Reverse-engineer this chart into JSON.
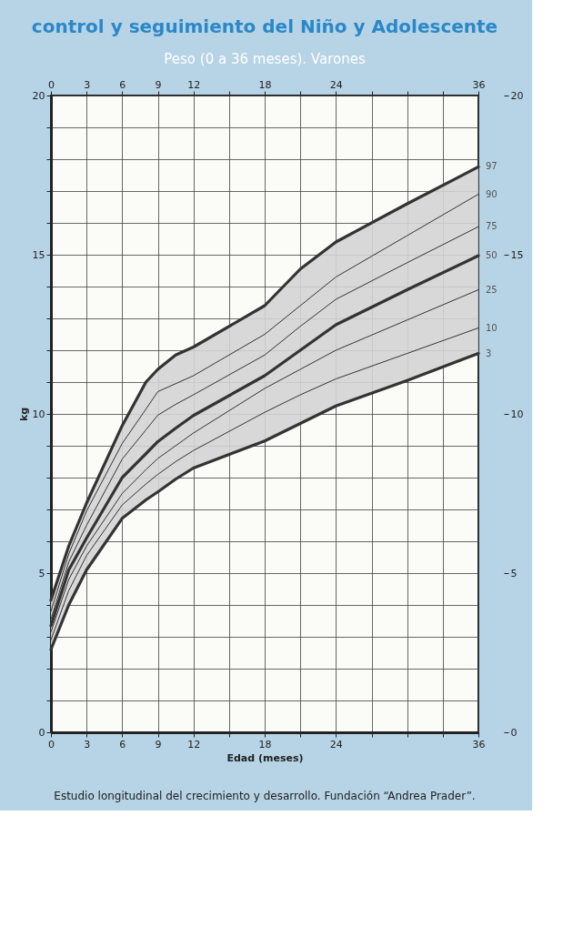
{
  "chart_data": {
    "type": "line",
    "title": "control y seguimiento del Niño y Adolescente",
    "subtitle": "Peso (0 a 36 meses). Varones",
    "xlabel": "Edad (meses)",
    "ylabel": "kg",
    "annotations": [
      "Estudio longitudinal del crecimiento y desarrollo. Fundación “Andrea Prader”."
    ],
    "x": [
      0,
      1.5,
      3,
      6,
      8,
      9,
      10.5,
      12,
      18,
      21,
      24,
      30,
      36
    ],
    "series": [
      {
        "name": "3",
        "color": "#333333",
        "values": [
          2.6,
          4.0,
          5.1,
          6.72,
          7.3,
          7.55,
          7.95,
          8.3,
          9.15,
          9.7,
          10.25,
          11.05,
          11.9
        ]
      },
      {
        "name": "10",
        "color": "#333333",
        "values": [
          2.9,
          4.45,
          5.55,
          7.14,
          7.8,
          8.1,
          8.5,
          8.85,
          10.05,
          10.6,
          11.1,
          11.9,
          12.7
        ]
      },
      {
        "name": "25",
        "color": "#333333",
        "values": [
          3.15,
          4.8,
          5.85,
          7.5,
          8.25,
          8.6,
          9.0,
          9.4,
          10.8,
          11.4,
          12.0,
          12.95,
          13.9
        ]
      },
      {
        "name": "50",
        "color": "#333333",
        "values": [
          3.35,
          5.1,
          6.1,
          8.0,
          8.75,
          9.13,
          9.55,
          9.95,
          11.2,
          12.0,
          12.8,
          13.9,
          14.97
        ],
        "lower": [
          2.6,
          4.0,
          5.1,
          6.72,
          7.3,
          7.55,
          7.95,
          8.3,
          9.15,
          9.7,
          10.25,
          11.05,
          11.9
        ],
        "upper": [
          4.15,
          5.85,
          7.2,
          9.63,
          11.0,
          11.4,
          11.85,
          12.1,
          13.4,
          14.55,
          15.4,
          16.6,
          17.76
        ]
      },
      {
        "name": "75",
        "color": "#333333",
        "values": [
          3.55,
          5.35,
          6.5,
          8.58,
          9.5,
          9.96,
          10.3,
          10.6,
          11.85,
          12.75,
          13.6,
          14.75,
          15.88
        ]
      },
      {
        "name": "90",
        "color": "#333333",
        "values": [
          3.8,
          5.6,
          6.95,
          9.07,
          10.15,
          10.7,
          10.95,
          11.2,
          12.5,
          13.4,
          14.3,
          15.6,
          16.9
        ]
      },
      {
        "name": "97",
        "color": "#333333",
        "values": [
          4.15,
          5.85,
          7.2,
          9.63,
          11.0,
          11.4,
          11.85,
          12.1,
          13.4,
          14.55,
          15.4,
          16.6,
          17.76
        ]
      }
    ],
    "xlim": [
      0,
      36
    ],
    "xticks": [
      0,
      3,
      6,
      9,
      12,
      {
        "value": 15,
        "label": null
      },
      18,
      {
        "value": 21,
        "label": null
      },
      24,
      {
        "value": 27,
        "label": null
      },
      {
        "value": 30,
        "label": null
      },
      {
        "value": 33,
        "label": null
      },
      36
    ],
    "x2lim": [
      0,
      36
    ],
    "x2ticks": [
      0,
      3,
      6,
      9,
      12,
      {
        "value": 15,
        "label": null
      },
      18,
      {
        "value": 21,
        "label": null
      },
      24,
      {
        "value": 27,
        "label": null
      },
      {
        "value": 30,
        "label": null
      },
      {
        "value": 33,
        "label": null
      },
      36
    ],
    "ylim": [
      0,
      20
    ],
    "yticks": [
      0,
      {
        "value": 1,
        "label": null
      },
      {
        "value": 2,
        "label": null
      },
      {
        "value": 3,
        "label": null
      },
      {
        "value": 4,
        "label": null
      },
      5,
      {
        "value": 6,
        "label": null
      },
      {
        "value": 7,
        "label": null
      },
      {
        "value": 8,
        "label": null
      },
      {
        "value": 9,
        "label": null
      },
      10,
      {
        "value": 11,
        "label": null
      },
      {
        "value": 12,
        "label": null
      },
      {
        "value": 13,
        "label": null
      },
      {
        "value": 14,
        "label": null
      },
      15,
      {
        "value": 16,
        "label": null
      },
      {
        "value": 17,
        "label": null
      },
      {
        "value": 18,
        "label": null
      },
      {
        "value": 19,
        "label": null
      },
      20
    ],
    "y2lim": [
      0,
      20
    ],
    "y2ticks": [
      0,
      5,
      10,
      15,
      20
    ],
    "grid": true,
    "legend": false,
    "marker": "none",
    "line_style": "solid"
  }
}
